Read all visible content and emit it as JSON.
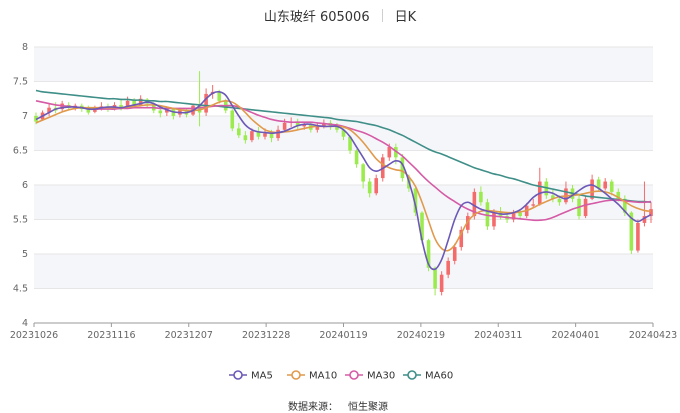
{
  "title": "山东玻纤 605006",
  "period_label": "日K",
  "source_label": "数据来源：",
  "source_name": "恒生聚源",
  "colors": {
    "up": "#f36b6b",
    "down": "#9beb4f",
    "grid": "#e6e6e6",
    "band": "#f5f6fa",
    "axis": "#9a9a9a"
  },
  "chart_data": {
    "type": "candlestick",
    "title": "山东玻纤 605006",
    "period": "日K",
    "ylim": [
      4,
      8
    ],
    "y_ticks": [
      4,
      4.5,
      5,
      5.5,
      6,
      6.5,
      7,
      7.5,
      8
    ],
    "x_tick_labels": [
      "20231026",
      "20231116",
      "20231207",
      "20231228",
      "20240119",
      "20240219",
      "20240311",
      "20240401",
      "20240423"
    ],
    "grid": true,
    "legend_position": "bottom",
    "series": [
      {
        "name": "MA5",
        "color": "#6b58b7",
        "values": [
          6.95,
          7.0,
          7.05,
          7.1,
          7.12,
          7.13,
          7.13,
          7.12,
          7.1,
          7.1,
          7.12,
          7.13,
          7.13,
          7.12,
          7.14,
          7.16,
          7.18,
          7.2,
          7.18,
          7.13,
          7.09,
          7.06,
          7.05,
          7.05,
          7.08,
          7.15,
          7.25,
          7.33,
          7.35,
          7.3,
          7.15,
          7.0,
          6.87,
          6.8,
          6.77,
          6.76,
          6.75,
          6.76,
          6.78,
          6.82,
          6.86,
          6.88,
          6.88,
          6.86,
          6.85,
          6.85,
          6.85,
          6.8,
          6.7,
          6.55,
          6.4,
          6.25,
          6.2,
          6.24,
          6.3,
          6.35,
          6.3,
          6.05,
          5.7,
          5.2,
          4.85,
          4.78,
          4.92,
          5.2,
          5.5,
          5.7,
          5.75,
          5.7,
          5.65,
          5.62,
          5.6,
          5.58,
          5.58,
          5.6,
          5.64,
          5.72,
          5.82,
          5.88,
          5.9,
          5.88,
          5.83,
          5.8,
          5.85,
          5.92,
          5.98,
          6.0,
          5.95,
          5.88,
          5.8,
          5.72,
          5.62,
          5.52,
          5.47,
          5.52,
          5.57
        ]
      },
      {
        "name": "MA10",
        "color": "#e09a4c",
        "values": [
          6.9,
          6.94,
          6.98,
          7.02,
          7.06,
          7.09,
          7.11,
          7.12,
          7.12,
          7.12,
          7.12,
          7.12,
          7.12,
          7.12,
          7.13,
          7.14,
          7.15,
          7.16,
          7.16,
          7.15,
          7.13,
          7.11,
          7.09,
          7.08,
          7.08,
          7.09,
          7.12,
          7.16,
          7.2,
          7.22,
          7.2,
          7.14,
          7.05,
          6.95,
          6.87,
          6.8,
          6.77,
          6.76,
          6.77,
          6.78,
          6.8,
          6.82,
          6.84,
          6.85,
          6.85,
          6.85,
          6.85,
          6.84,
          6.8,
          6.72,
          6.62,
          6.5,
          6.38,
          6.3,
          6.25,
          6.22,
          6.2,
          6.12,
          5.98,
          5.75,
          5.48,
          5.22,
          5.08,
          5.05,
          5.13,
          5.3,
          5.47,
          5.57,
          5.62,
          5.63,
          5.62,
          5.61,
          5.6,
          5.6,
          5.61,
          5.63,
          5.67,
          5.72,
          5.76,
          5.8,
          5.83,
          5.84,
          5.85,
          5.86,
          5.88,
          5.9,
          5.91,
          5.9,
          5.87,
          5.82,
          5.76,
          5.7,
          5.66,
          5.63,
          5.62
        ]
      },
      {
        "name": "MA30",
        "color": "#d55ba6",
        "values": [
          7.22,
          7.2,
          7.18,
          7.16,
          7.15,
          7.14,
          7.13,
          7.12,
          7.11,
          7.1,
          7.1,
          7.1,
          7.1,
          7.11,
          7.11,
          7.12,
          7.12,
          7.12,
          7.12,
          7.11,
          7.11,
          7.11,
          7.11,
          7.11,
          7.11,
          7.12,
          7.13,
          7.14,
          7.15,
          7.15,
          7.15,
          7.13,
          7.09,
          7.05,
          7.01,
          6.98,
          6.95,
          6.93,
          6.92,
          6.91,
          6.91,
          6.91,
          6.91,
          6.9,
          6.89,
          6.88,
          6.87,
          6.85,
          6.82,
          6.79,
          6.76,
          6.72,
          6.67,
          6.62,
          6.56,
          6.49,
          6.42,
          6.33,
          6.24,
          6.14,
          6.05,
          5.97,
          5.89,
          5.82,
          5.76,
          5.7,
          5.65,
          5.61,
          5.58,
          5.56,
          5.55,
          5.54,
          5.53,
          5.52,
          5.51,
          5.5,
          5.49,
          5.49,
          5.5,
          5.53,
          5.57,
          5.61,
          5.65,
          5.68,
          5.71,
          5.73,
          5.75,
          5.77,
          5.78,
          5.78,
          5.77,
          5.76,
          5.75,
          5.75,
          5.76
        ]
      },
      {
        "name": "MA60",
        "color": "#3f8f88",
        "values": [
          7.37,
          7.35,
          7.34,
          7.33,
          7.32,
          7.31,
          7.3,
          7.29,
          7.28,
          7.27,
          7.26,
          7.25,
          7.25,
          7.24,
          7.24,
          7.23,
          7.23,
          7.22,
          7.22,
          7.21,
          7.21,
          7.2,
          7.19,
          7.18,
          7.17,
          7.16,
          7.15,
          7.15,
          7.14,
          7.13,
          7.12,
          7.11,
          7.1,
          7.09,
          7.08,
          7.07,
          7.06,
          7.05,
          7.04,
          7.03,
          7.02,
          7.01,
          7.0,
          6.99,
          6.98,
          6.97,
          6.95,
          6.94,
          6.93,
          6.92,
          6.9,
          6.88,
          6.86,
          6.83,
          6.8,
          6.76,
          6.72,
          6.67,
          6.62,
          6.57,
          6.52,
          6.48,
          6.45,
          6.41,
          6.37,
          6.33,
          6.29,
          6.25,
          6.22,
          6.19,
          6.16,
          6.14,
          6.11,
          6.09,
          6.06,
          6.03,
          6.0,
          5.98,
          5.96,
          5.94,
          5.92,
          5.9,
          5.88,
          5.86,
          5.84,
          5.83,
          5.82,
          5.81,
          5.8,
          5.79,
          5.78,
          5.77,
          5.76,
          5.76,
          5.75
        ]
      }
    ],
    "candles": [
      {
        "o": 7.0,
        "c": 6.92,
        "h": 7.05,
        "l": 6.88
      },
      {
        "o": 6.95,
        "c": 7.05,
        "h": 7.08,
        "l": 6.93
      },
      {
        "o": 7.05,
        "c": 7.12,
        "h": 7.18,
        "l": 7.0
      },
      {
        "o": 7.12,
        "c": 7.08,
        "h": 7.2,
        "l": 7.04
      },
      {
        "o": 7.1,
        "c": 7.18,
        "h": 7.22,
        "l": 7.06
      },
      {
        "o": 7.16,
        "c": 7.12,
        "h": 7.2,
        "l": 7.1
      },
      {
        "o": 7.12,
        "c": 7.15,
        "h": 7.18,
        "l": 7.08
      },
      {
        "o": 7.15,
        "c": 7.1,
        "h": 7.18,
        "l": 7.06
      },
      {
        "o": 7.12,
        "c": 7.05,
        "h": 7.15,
        "l": 7.02
      },
      {
        "o": 7.06,
        "c": 7.12,
        "h": 7.15,
        "l": 7.04
      },
      {
        "o": 7.12,
        "c": 7.14,
        "h": 7.2,
        "l": 7.08
      },
      {
        "o": 7.14,
        "c": 7.1,
        "h": 7.18,
        "l": 7.06
      },
      {
        "o": 7.1,
        "c": 7.16,
        "h": 7.2,
        "l": 7.08
      },
      {
        "o": 7.16,
        "c": 7.1,
        "h": 7.25,
        "l": 7.08
      },
      {
        "o": 7.12,
        "c": 7.22,
        "h": 7.28,
        "l": 7.1
      },
      {
        "o": 7.22,
        "c": 7.15,
        "h": 7.26,
        "l": 7.12
      },
      {
        "o": 7.16,
        "c": 7.25,
        "h": 7.3,
        "l": 7.14
      },
      {
        "o": 7.24,
        "c": 7.18,
        "h": 7.26,
        "l": 7.12
      },
      {
        "o": 7.18,
        "c": 7.08,
        "h": 7.2,
        "l": 7.04
      },
      {
        "o": 7.08,
        "c": 7.04,
        "h": 7.1,
        "l": 6.98
      },
      {
        "o": 7.05,
        "c": 7.1,
        "h": 7.14,
        "l": 7.0
      },
      {
        "o": 7.1,
        "c": 7.0,
        "h": 7.12,
        "l": 6.95
      },
      {
        "o": 7.02,
        "c": 7.08,
        "h": 7.12,
        "l": 6.98
      },
      {
        "o": 7.08,
        "c": 7.02,
        "h": 7.1,
        "l": 6.98
      },
      {
        "o": 7.02,
        "c": 7.15,
        "h": 7.18,
        "l": 7.0
      },
      {
        "o": 7.15,
        "c": 7.05,
        "h": 7.65,
        "l": 6.85
      },
      {
        "o": 7.05,
        "c": 7.32,
        "h": 7.4,
        "l": 7.0
      },
      {
        "o": 7.32,
        "c": 7.35,
        "h": 7.45,
        "l": 7.25
      },
      {
        "o": 7.35,
        "c": 7.22,
        "h": 7.38,
        "l": 7.18
      },
      {
        "o": 7.22,
        "c": 7.08,
        "h": 7.25,
        "l": 7.04
      },
      {
        "o": 7.08,
        "c": 6.82,
        "h": 7.1,
        "l": 6.78
      },
      {
        "o": 6.82,
        "c": 6.72,
        "h": 6.9,
        "l": 6.68
      },
      {
        "o": 6.72,
        "c": 6.65,
        "h": 6.78,
        "l": 6.6
      },
      {
        "o": 6.65,
        "c": 6.78,
        "h": 6.82,
        "l": 6.62
      },
      {
        "o": 6.78,
        "c": 6.7,
        "h": 6.84,
        "l": 6.66
      },
      {
        "o": 6.7,
        "c": 6.75,
        "h": 6.82,
        "l": 6.66
      },
      {
        "o": 6.75,
        "c": 6.68,
        "h": 6.8,
        "l": 6.62
      },
      {
        "o": 6.68,
        "c": 6.8,
        "h": 6.86,
        "l": 6.64
      },
      {
        "o": 6.8,
        "c": 6.9,
        "h": 6.96,
        "l": 6.76
      },
      {
        "o": 6.9,
        "c": 6.92,
        "h": 6.98,
        "l": 6.84
      },
      {
        "o": 6.92,
        "c": 6.85,
        "h": 6.96,
        "l": 6.8
      },
      {
        "o": 6.85,
        "c": 6.88,
        "h": 6.92,
        "l": 6.8
      },
      {
        "o": 6.88,
        "c": 6.8,
        "h": 6.92,
        "l": 6.76
      },
      {
        "o": 6.8,
        "c": 6.86,
        "h": 6.9,
        "l": 6.76
      },
      {
        "o": 6.86,
        "c": 6.9,
        "h": 6.95,
        "l": 6.82
      },
      {
        "o": 6.9,
        "c": 6.85,
        "h": 6.94,
        "l": 6.8
      },
      {
        "o": 6.85,
        "c": 6.8,
        "h": 6.9,
        "l": 6.76
      },
      {
        "o": 6.8,
        "c": 6.7,
        "h": 6.82,
        "l": 6.65
      },
      {
        "o": 6.7,
        "c": 6.5,
        "h": 6.72,
        "l": 6.45
      },
      {
        "o": 6.5,
        "c": 6.3,
        "h": 6.52,
        "l": 6.25
      },
      {
        "o": 6.3,
        "c": 6.05,
        "h": 6.32,
        "l": 5.95
      },
      {
        "o": 6.05,
        "c": 5.88,
        "h": 6.1,
        "l": 5.82
      },
      {
        "o": 5.88,
        "c": 6.1,
        "h": 6.15,
        "l": 5.85
      },
      {
        "o": 6.1,
        "c": 6.4,
        "h": 6.45,
        "l": 6.05
      },
      {
        "o": 6.4,
        "c": 6.55,
        "h": 6.6,
        "l": 6.35
      },
      {
        "o": 6.55,
        "c": 6.4,
        "h": 6.6,
        "l": 6.3
      },
      {
        "o": 6.4,
        "c": 6.1,
        "h": 6.45,
        "l": 6.05
      },
      {
        "o": 6.1,
        "c": 5.95,
        "h": 6.15,
        "l": 5.9
      },
      {
        "o": 5.95,
        "c": 5.6,
        "h": 5.98,
        "l": 5.55
      },
      {
        "o": 5.6,
        "c": 5.2,
        "h": 5.62,
        "l": 5.15
      },
      {
        "o": 5.2,
        "c": 4.8,
        "h": 5.22,
        "l": 4.75
      },
      {
        "o": 4.8,
        "c": 4.5,
        "h": 4.82,
        "l": 4.4
      },
      {
        "o": 4.45,
        "c": 4.7,
        "h": 4.75,
        "l": 4.4
      },
      {
        "o": 4.7,
        "c": 4.9,
        "h": 4.95,
        "l": 4.65
      },
      {
        "o": 4.9,
        "c": 5.1,
        "h": 5.15,
        "l": 4.85
      },
      {
        "o": 5.1,
        "c": 5.35,
        "h": 5.4,
        "l": 5.05
      },
      {
        "o": 5.35,
        "c": 5.55,
        "h": 5.6,
        "l": 5.3
      },
      {
        "o": 5.55,
        "c": 5.9,
        "h": 5.95,
        "l": 5.5
      },
      {
        "o": 5.9,
        "c": 5.75,
        "h": 5.98,
        "l": 5.7
      },
      {
        "o": 5.75,
        "c": 5.4,
        "h": 5.8,
        "l": 5.35
      },
      {
        "o": 5.4,
        "c": 5.6,
        "h": 5.65,
        "l": 5.35
      },
      {
        "o": 5.6,
        "c": 5.55,
        "h": 5.68,
        "l": 5.5
      },
      {
        "o": 5.55,
        "c": 5.5,
        "h": 5.6,
        "l": 5.45
      },
      {
        "o": 5.5,
        "c": 5.6,
        "h": 5.64,
        "l": 5.46
      },
      {
        "o": 5.6,
        "c": 5.55,
        "h": 5.65,
        "l": 5.5
      },
      {
        "o": 5.55,
        "c": 5.7,
        "h": 5.74,
        "l": 5.52
      },
      {
        "o": 5.7,
        "c": 5.72,
        "h": 5.8,
        "l": 5.66
      },
      {
        "o": 5.72,
        "c": 6.05,
        "h": 6.25,
        "l": 5.7
      },
      {
        "o": 6.05,
        "c": 5.85,
        "h": 6.1,
        "l": 5.8
      },
      {
        "o": 5.85,
        "c": 5.8,
        "h": 5.95,
        "l": 5.75
      },
      {
        "o": 5.8,
        "c": 5.75,
        "h": 5.85,
        "l": 5.7
      },
      {
        "o": 5.75,
        "c": 5.95,
        "h": 6.05,
        "l": 5.72
      },
      {
        "o": 5.95,
        "c": 5.8,
        "h": 6.0,
        "l": 5.75
      },
      {
        "o": 5.8,
        "c": 5.55,
        "h": 5.85,
        "l": 5.5
      },
      {
        "o": 5.55,
        "c": 5.8,
        "h": 5.85,
        "l": 5.52
      },
      {
        "o": 5.8,
        "c": 6.08,
        "h": 6.15,
        "l": 5.78
      },
      {
        "o": 6.08,
        "c": 5.95,
        "h": 6.12,
        "l": 5.9
      },
      {
        "o": 5.95,
        "c": 6.05,
        "h": 6.1,
        "l": 5.92
      },
      {
        "o": 6.05,
        "c": 5.9,
        "h": 6.08,
        "l": 5.85
      },
      {
        "o": 5.9,
        "c": 5.8,
        "h": 5.95,
        "l": 5.76
      },
      {
        "o": 5.8,
        "c": 5.6,
        "h": 5.85,
        "l": 5.55
      },
      {
        "o": 5.6,
        "c": 5.05,
        "h": 5.62,
        "l": 5.0
      },
      {
        "o": 5.05,
        "c": 5.45,
        "h": 5.5,
        "l": 5.02
      },
      {
        "o": 5.45,
        "c": 5.55,
        "h": 6.05,
        "l": 5.4
      },
      {
        "o": 5.55,
        "c": 5.65,
        "h": 5.75,
        "l": 5.45
      }
    ]
  }
}
